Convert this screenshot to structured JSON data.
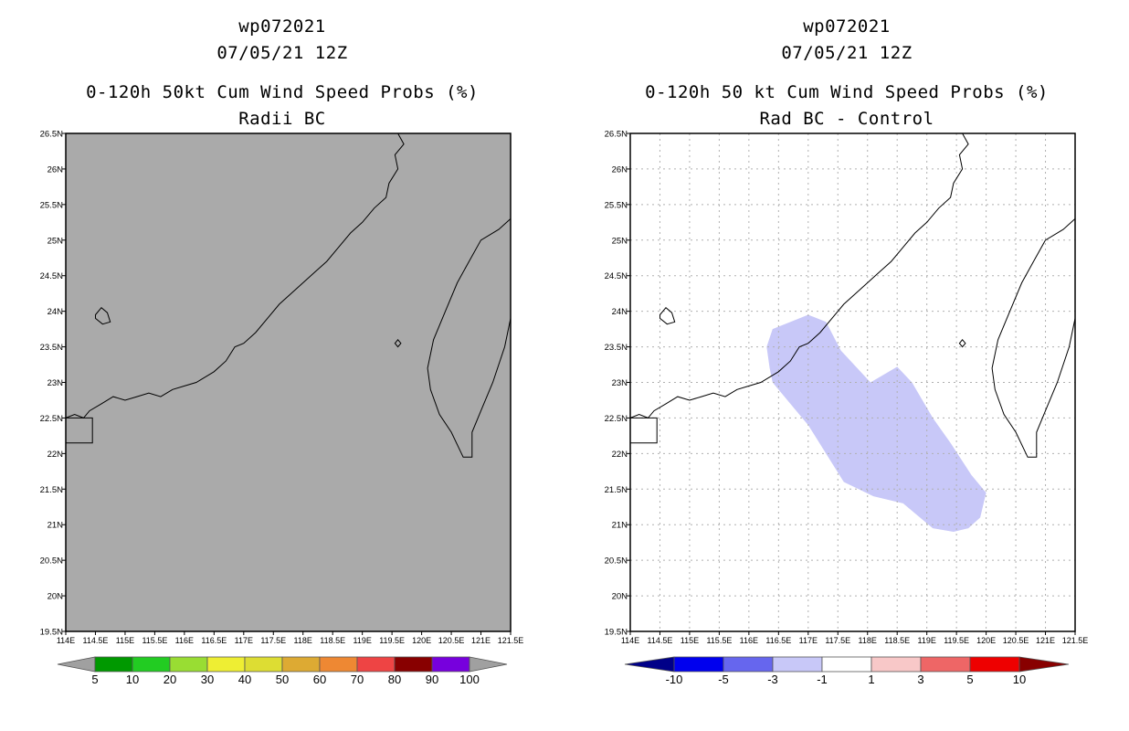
{
  "chart_data": [
    {
      "type": "map",
      "title_line1": "wp072021",
      "title_line2": "07/05/21 12Z",
      "title_line3": "0-120h 50kt Cum Wind Speed Probs (%)",
      "title_line4": "Radii BC",
      "xlim": [
        114,
        121.5
      ],
      "ylim": [
        19.5,
        26.5
      ],
      "x_ticks": [
        "114E",
        "114.5E",
        "115E",
        "115.5E",
        "116E",
        "116.5E",
        "117E",
        "117.5E",
        "118E",
        "118.5E",
        "119E",
        "119.5E",
        "120E",
        "120.5E",
        "121E",
        "121.5E"
      ],
      "y_ticks": [
        "19.5N",
        "20N",
        "20.5N",
        "21N",
        "21.5N",
        "22N",
        "22.5N",
        "23N",
        "23.5N",
        "24N",
        "24.5N",
        "25N",
        "25.5N",
        "26N",
        "26.5N"
      ],
      "background_color": "#aaaaaa",
      "grid": false,
      "shaded_region": null,
      "colorbar": {
        "labels": [
          "5",
          "10",
          "20",
          "30",
          "40",
          "50",
          "60",
          "70",
          "80",
          "90",
          "100"
        ],
        "colors": [
          "#a0a0a0",
          "#009900",
          "#22cc22",
          "#99dd33",
          "#eeee33",
          "#dddd33",
          "#ddaa33",
          "#ee8833",
          "#ee4444",
          "#880000",
          "#7700dd",
          "#a0a0a0"
        ]
      }
    },
    {
      "type": "map",
      "title_line1": "wp072021",
      "title_line2": "07/05/21 12Z",
      "title_line3": "0-120h 50 kt Cum Wind Speed Probs (%)",
      "title_line4": "Rad BC - Control",
      "xlim": [
        114,
        121.5
      ],
      "ylim": [
        19.5,
        26.5
      ],
      "x_ticks": [
        "114E",
        "114.5E",
        "115E",
        "115.5E",
        "116E",
        "116.5E",
        "117E",
        "117.5E",
        "118E",
        "118.5E",
        "119E",
        "119.5E",
        "120E",
        "120.5E",
        "121E",
        "121.5E"
      ],
      "y_ticks": [
        "19.5N",
        "20N",
        "20.5N",
        "21N",
        "21.5N",
        "22N",
        "22.5N",
        "23N",
        "23.5N",
        "24N",
        "24.5N",
        "25N",
        "25.5N",
        "26N",
        "26.5N"
      ],
      "background_color": "#ffffff",
      "grid": true,
      "shaded_region": {
        "range": "-3 to -1",
        "color": "#c8c8f8",
        "polygon_lonlat": [
          [
            116.3,
            23.5
          ],
          [
            116.4,
            23.75
          ],
          [
            117.0,
            23.95
          ],
          [
            117.3,
            23.85
          ],
          [
            117.55,
            23.45
          ],
          [
            118.05,
            23.0
          ],
          [
            118.5,
            23.22
          ],
          [
            118.75,
            23.0
          ],
          [
            119.1,
            22.5
          ],
          [
            119.4,
            22.15
          ],
          [
            119.75,
            21.7
          ],
          [
            120.0,
            21.45
          ],
          [
            119.9,
            21.1
          ],
          [
            119.7,
            20.95
          ],
          [
            119.45,
            20.9
          ],
          [
            119.1,
            20.95
          ],
          [
            118.6,
            21.3
          ],
          [
            118.1,
            21.4
          ],
          [
            117.6,
            21.6
          ],
          [
            117.3,
            22.0
          ],
          [
            117.0,
            22.4
          ],
          [
            116.6,
            22.8
          ],
          [
            116.4,
            23.0
          ],
          [
            116.35,
            23.2
          ]
        ]
      },
      "colorbar": {
        "labels": [
          "-10",
          "-5",
          "-3",
          "-1",
          "1",
          "3",
          "5",
          "10"
        ],
        "colors": [
          "#000088",
          "#0000ee",
          "#6666ee",
          "#c8c8f8",
          "#ffffff",
          "#f8c8c8",
          "#ee6666",
          "#ee0000",
          "#880000"
        ]
      }
    }
  ]
}
